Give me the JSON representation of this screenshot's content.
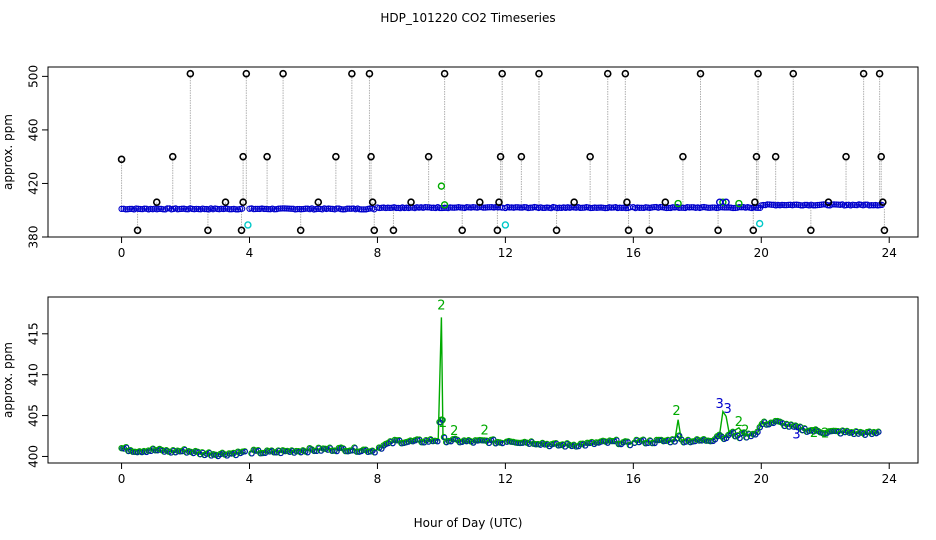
{
  "title": "HDP_101220  CO2 Timeseries",
  "xlabel": "Hour of Day (UTC)",
  "colors": {
    "raw": "#000000",
    "flag": "#00c8c8",
    "level1": "#0000cc",
    "level2": "#00aa00",
    "connector": "#b0b0b0"
  },
  "chart_data": [
    {
      "type": "scatter",
      "ylabel": "approx. ppm",
      "xlim": [
        -2.3,
        24.9
      ],
      "ylim": [
        380,
        507
      ],
      "xticks": [
        0,
        4,
        8,
        12,
        16,
        20,
        24
      ],
      "yticks": [
        380,
        420,
        460,
        500
      ],
      "tick_labels_x": [
        "0",
        "4",
        "8",
        "12",
        "16",
        "20",
        "24"
      ],
      "tick_labels_y": [
        "380",
        "420",
        "460",
        "500"
      ],
      "baseline_segments": [
        {
          "x0": 0.0,
          "x1": 3.8,
          "y": 401
        },
        {
          "x0": 4.0,
          "x1": 7.9,
          "y": 401
        },
        {
          "x0": 8.0,
          "x1": 11.9,
          "y": 402
        },
        {
          "x0": 12.0,
          "x1": 15.9,
          "y": 402
        },
        {
          "x0": 16.0,
          "x1": 20.0,
          "y": 402
        },
        {
          "x0": 20.0,
          "x1": 23.8,
          "y": 404
        }
      ],
      "spikes": [
        {
          "x": 0.0,
          "y": 438
        },
        {
          "x": 0.5,
          "y": 385
        },
        {
          "x": 1.1,
          "y": 406
        },
        {
          "x": 1.6,
          "y": 440
        },
        {
          "x": 2.15,
          "y": 502
        },
        {
          "x": 2.7,
          "y": 385
        },
        {
          "x": 3.25,
          "y": 406
        },
        {
          "x": 3.75,
          "y": 385
        },
        {
          "x": 3.8,
          "y": 406
        },
        {
          "x": 3.8,
          "y": 440
        },
        {
          "x": 3.9,
          "y": 502
        },
        {
          "x": 4.55,
          "y": 440
        },
        {
          "x": 5.05,
          "y": 502
        },
        {
          "x": 5.6,
          "y": 385
        },
        {
          "x": 6.15,
          "y": 406
        },
        {
          "x": 6.7,
          "y": 440
        },
        {
          "x": 7.2,
          "y": 502
        },
        {
          "x": 7.75,
          "y": 502
        },
        {
          "x": 7.8,
          "y": 440
        },
        {
          "x": 7.85,
          "y": 406
        },
        {
          "x": 7.9,
          "y": 385
        },
        {
          "x": 8.5,
          "y": 385
        },
        {
          "x": 9.05,
          "y": 406
        },
        {
          "x": 9.6,
          "y": 440
        },
        {
          "x": 10.1,
          "y": 502
        },
        {
          "x": 10.65,
          "y": 385
        },
        {
          "x": 11.2,
          "y": 406
        },
        {
          "x": 11.75,
          "y": 385
        },
        {
          "x": 11.8,
          "y": 406
        },
        {
          "x": 11.85,
          "y": 440
        },
        {
          "x": 11.9,
          "y": 502
        },
        {
          "x": 12.5,
          "y": 440
        },
        {
          "x": 13.05,
          "y": 502
        },
        {
          "x": 13.6,
          "y": 385
        },
        {
          "x": 14.15,
          "y": 406
        },
        {
          "x": 14.65,
          "y": 440
        },
        {
          "x": 15.2,
          "y": 502
        },
        {
          "x": 15.75,
          "y": 502
        },
        {
          "x": 15.8,
          "y": 406
        },
        {
          "x": 15.85,
          "y": 385
        },
        {
          "x": 16.5,
          "y": 385
        },
        {
          "x": 17.0,
          "y": 406
        },
        {
          "x": 17.55,
          "y": 440
        },
        {
          "x": 18.1,
          "y": 502
        },
        {
          "x": 18.65,
          "y": 385
        },
        {
          "x": 19.75,
          "y": 385
        },
        {
          "x": 19.8,
          "y": 406
        },
        {
          "x": 19.85,
          "y": 440
        },
        {
          "x": 19.9,
          "y": 502
        },
        {
          "x": 20.45,
          "y": 440
        },
        {
          "x": 21.0,
          "y": 502
        },
        {
          "x": 21.55,
          "y": 385
        },
        {
          "x": 22.1,
          "y": 406
        },
        {
          "x": 22.65,
          "y": 440
        },
        {
          "x": 23.2,
          "y": 502
        },
        {
          "x": 23.7,
          "y": 502
        },
        {
          "x": 23.75,
          "y": 440
        },
        {
          "x": 23.8,
          "y": 406
        },
        {
          "x": 23.85,
          "y": 385
        }
      ],
      "flag_points": [
        {
          "x": 3.95,
          "y": 389
        },
        {
          "x": 12.0,
          "y": 389
        },
        {
          "x": 19.95,
          "y": 390
        }
      ],
      "level2_points": [
        {
          "x": 10.0,
          "y": 418
        },
        {
          "x": 10.1,
          "y": 404
        },
        {
          "x": 17.4,
          "y": 405
        },
        {
          "x": 18.8,
          "y": 406
        },
        {
          "x": 19.3,
          "y": 405
        }
      ],
      "level1_extra": [
        {
          "x": 18.7,
          "y": 406
        },
        {
          "x": 18.9,
          "y": 406
        }
      ]
    },
    {
      "type": "line",
      "ylabel": "approx. ppm",
      "xlim": [
        -2.3,
        24.9
      ],
      "ylim": [
        399.2,
        419.5
      ],
      "xticks": [
        0,
        4,
        8,
        12,
        16,
        20,
        24
      ],
      "yticks": [
        400,
        405,
        410,
        415
      ],
      "tick_labels_x": [
        "0",
        "4",
        "8",
        "12",
        "16",
        "20",
        "24"
      ],
      "tick_labels_y": [
        "400",
        "405",
        "410",
        "415"
      ],
      "series": [
        {
          "x": [
            0.0,
            0.5,
            1.0,
            1.5,
            2.0,
            2.5,
            3.0,
            3.5,
            3.85,
            4.0,
            4.5,
            5.0,
            5.5,
            6.0,
            6.5,
            7.0,
            7.5,
            7.95,
            8.0,
            8.3,
            8.6,
            9.0,
            9.5,
            9.9,
            10.0,
            10.05,
            10.15,
            10.5,
            11.0,
            11.5,
            11.9,
            12.0,
            12.5,
            13.0,
            13.5,
            14.0,
            14.5,
            15.0,
            15.5,
            15.9,
            16.0,
            16.5,
            17.0,
            17.3,
            17.4,
            17.5,
            18.0,
            18.5,
            18.7,
            18.8,
            18.9,
            19.0,
            19.3,
            19.5,
            19.9,
            20.0,
            20.5,
            21.0,
            21.5,
            22.0,
            22.5,
            23.0,
            23.5,
            23.7
          ],
          "y": [
            401.0,
            400.7,
            400.8,
            400.6,
            400.7,
            400.4,
            400.3,
            400.4,
            400.5,
            400.6,
            400.5,
            400.6,
            400.7,
            400.8,
            400.9,
            400.9,
            400.8,
            400.7,
            401.0,
            401.5,
            401.9,
            401.8,
            401.9,
            402.0,
            417.0,
            402.2,
            402.0,
            401.9,
            401.8,
            401.9,
            401.7,
            402.0,
            401.8,
            401.7,
            401.4,
            401.4,
            401.5,
            401.7,
            401.8,
            401.5,
            401.9,
            401.8,
            401.9,
            402.0,
            404.5,
            402.0,
            401.9,
            402.1,
            402.8,
            405.5,
            404.9,
            402.8,
            403.5,
            402.5,
            403.0,
            404.0,
            404.2,
            403.6,
            403.2,
            403.0,
            403.0,
            402.9,
            402.8,
            403.0
          ]
        }
      ],
      "annotations": [
        {
          "x": 10.0,
          "y": 418,
          "text": "2"
        },
        {
          "x": 10.05,
          "y": 403.6,
          "text": "2"
        },
        {
          "x": 10.4,
          "y": 402.6,
          "text": "2"
        },
        {
          "x": 11.35,
          "y": 402.7,
          "text": "2"
        },
        {
          "x": 17.35,
          "y": 405.1,
          "text": "2"
        },
        {
          "x": 18.7,
          "y": 405.9,
          "text": "3"
        },
        {
          "x": 18.95,
          "y": 405.3,
          "text": "3"
        },
        {
          "x": 19.3,
          "y": 403.7,
          "text": "2"
        },
        {
          "x": 19.5,
          "y": 402.7,
          "text": "2"
        },
        {
          "x": 21.1,
          "y": 402.2,
          "text": "3"
        },
        {
          "x": 21.65,
          "y": 402.4,
          "text": "2"
        },
        {
          "x": 22.0,
          "y": 402.3,
          "text": "2"
        }
      ]
    }
  ]
}
